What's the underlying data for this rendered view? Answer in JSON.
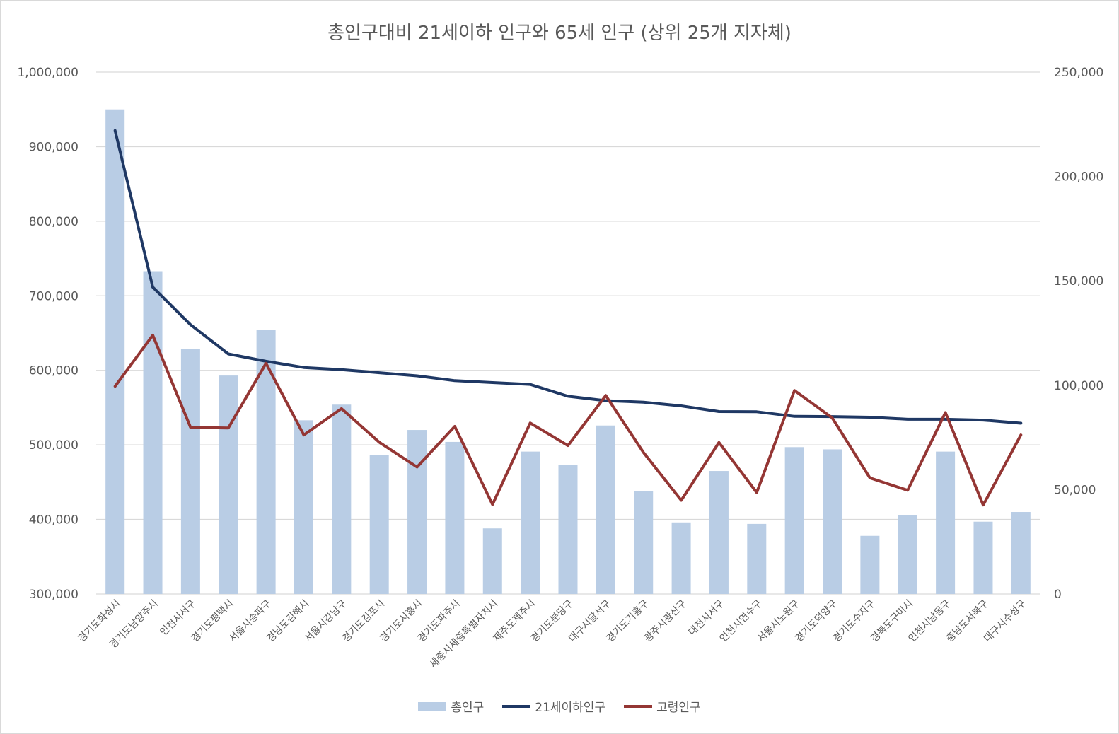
{
  "chart_data": {
    "type": "bar+line",
    "title": "총인구대비 21세이하 인구와 65세 인구 (상위 25개 지자체)",
    "categories": [
      "경기도화성시",
      "경기도남양주시",
      "인천시서구",
      "경기도평택시",
      "서울시송파구",
      "경남도김해시",
      "서울시강남구",
      "경기도김포시",
      "경기도시흥시",
      "경기도파주시",
      "세종시세종특별자치시",
      "제주도제주시",
      "경기도분당구",
      "대구시달서구",
      "경기도기흥구",
      "광주시광산구",
      "대전시서구",
      "인천시연수구",
      "서울시노원구",
      "경기도덕양구",
      "경기도수지구",
      "경북도구미시",
      "인천시남동구",
      "충남도서북구",
      "대구시수성구"
    ],
    "y_left": {
      "min": 300000,
      "max": 1000000,
      "ticks": [
        "1,000,000",
        "900,000",
        "800,000",
        "700,000",
        "600,000",
        "500,000",
        "400,000",
        "300,000"
      ],
      "tick_values": [
        1000000,
        900000,
        800000,
        700000,
        600000,
        500000,
        400000,
        300000
      ]
    },
    "y_right": {
      "min": 0,
      "max": 250000,
      "ticks": [
        "250,000",
        "200,000",
        "150,000",
        "100,000",
        "50,000",
        "0"
      ],
      "tick_values": [
        250000,
        200000,
        150000,
        100000,
        50000,
        0
      ]
    },
    "grid": true,
    "legend_placement": "bottom",
    "series": [
      {
        "name": "총인구",
        "type": "bar",
        "axis": "left",
        "color": "#b9cde5",
        "values": [
          950000,
          733000,
          629000,
          593000,
          654000,
          533000,
          554000,
          486000,
          520000,
          504000,
          388000,
          491000,
          473000,
          526000,
          438000,
          396000,
          465000,
          394000,
          497000,
          494000,
          378000,
          406000,
          491000,
          397000,
          410000
        ]
      },
      {
        "name": "21세이하인구",
        "type": "line",
        "axis": "right",
        "color": "#1f3864",
        "values": [
          222000,
          147000,
          129000,
          115000,
          111500,
          108500,
          107500,
          106000,
          104500,
          102200,
          101300,
          100400,
          94700,
          92600,
          91900,
          90100,
          87400,
          87300,
          85100,
          85000,
          84700,
          83700,
          83700,
          83300,
          81800
        ]
      },
      {
        "name": "고령인구",
        "type": "line",
        "axis": "right",
        "color": "#943634",
        "values": [
          99500,
          124000,
          79800,
          79500,
          110500,
          76200,
          88800,
          72700,
          60800,
          80300,
          42900,
          81900,
          71100,
          95100,
          67800,
          44900,
          72600,
          48600,
          97500,
          84400,
          55600,
          49700,
          86900,
          42600,
          76200
        ]
      }
    ]
  }
}
